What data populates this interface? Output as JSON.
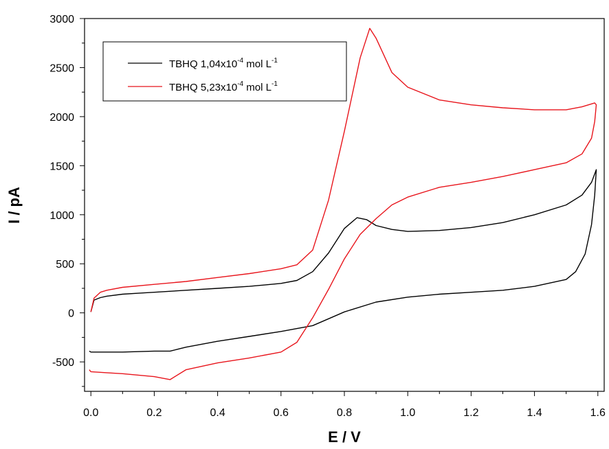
{
  "chart_data": {
    "type": "line",
    "title": "",
    "xlabel": "E / V",
    "ylabel": "I / pA",
    "xlim": [
      -0.02,
      1.62
    ],
    "ylim": [
      -800,
      3000
    ],
    "xticks": [
      "0.0",
      "0.2",
      "0.4",
      "0.6",
      "0.8",
      "1.0",
      "1.2",
      "1.4",
      "1.6"
    ],
    "yticks": [
      "-500",
      "0",
      "500",
      "1000",
      "1500",
      "2000",
      "2500",
      "3000"
    ],
    "grid": false,
    "legend_position": "top-left",
    "series": [
      {
        "name": "TBHQ 1,04x10-4 mol L-1",
        "legend_base": "TBHQ 1,04x10",
        "legend_exp": "-4",
        "legend_unit": " mol L",
        "legend_unit_exp": "-1",
        "color": "#000000",
        "points": [
          [
            0.0,
            10
          ],
          [
            0.01,
            130
          ],
          [
            0.03,
            155
          ],
          [
            0.05,
            170
          ],
          [
            0.1,
            190
          ],
          [
            0.15,
            200
          ],
          [
            0.2,
            210
          ],
          [
            0.3,
            230
          ],
          [
            0.4,
            250
          ],
          [
            0.5,
            270
          ],
          [
            0.6,
            300
          ],
          [
            0.65,
            330
          ],
          [
            0.7,
            420
          ],
          [
            0.75,
            610
          ],
          [
            0.8,
            860
          ],
          [
            0.84,
            970
          ],
          [
            0.87,
            950
          ],
          [
            0.9,
            890
          ],
          [
            0.95,
            850
          ],
          [
            1.0,
            830
          ],
          [
            1.1,
            840
          ],
          [
            1.2,
            870
          ],
          [
            1.3,
            920
          ],
          [
            1.4,
            1000
          ],
          [
            1.5,
            1100
          ],
          [
            1.55,
            1200
          ],
          [
            1.58,
            1330
          ],
          [
            1.595,
            1460
          ],
          [
            1.59,
            1200
          ],
          [
            1.58,
            900
          ],
          [
            1.56,
            600
          ],
          [
            1.53,
            420
          ],
          [
            1.5,
            340
          ],
          [
            1.4,
            270
          ],
          [
            1.3,
            230
          ],
          [
            1.2,
            210
          ],
          [
            1.1,
            190
          ],
          [
            1.0,
            160
          ],
          [
            0.9,
            110
          ],
          [
            0.8,
            10
          ],
          [
            0.75,
            -60
          ],
          [
            0.7,
            -130
          ],
          [
            0.6,
            -190
          ],
          [
            0.5,
            -240
          ],
          [
            0.4,
            -290
          ],
          [
            0.3,
            -350
          ],
          [
            0.25,
            -390
          ],
          [
            0.2,
            -390
          ],
          [
            0.1,
            -400
          ],
          [
            0.0,
            -400
          ],
          [
            -0.005,
            -390
          ]
        ]
      },
      {
        "name": "TBHQ 5,23x10-4 mol L-1",
        "legend_base": "TBHQ 5,23x10",
        "legend_exp": "-4",
        "legend_unit": " mol L",
        "legend_unit_exp": "-1",
        "color": "#e8141b",
        "points": [
          [
            0.0,
            10
          ],
          [
            0.01,
            150
          ],
          [
            0.03,
            210
          ],
          [
            0.05,
            230
          ],
          [
            0.1,
            260
          ],
          [
            0.2,
            290
          ],
          [
            0.3,
            320
          ],
          [
            0.4,
            360
          ],
          [
            0.5,
            400
          ],
          [
            0.6,
            450
          ],
          [
            0.65,
            490
          ],
          [
            0.7,
            640
          ],
          [
            0.75,
            1150
          ],
          [
            0.8,
            1850
          ],
          [
            0.85,
            2600
          ],
          [
            0.88,
            2900
          ],
          [
            0.9,
            2800
          ],
          [
            0.95,
            2450
          ],
          [
            1.0,
            2300
          ],
          [
            1.1,
            2170
          ],
          [
            1.2,
            2120
          ],
          [
            1.3,
            2090
          ],
          [
            1.4,
            2070
          ],
          [
            1.5,
            2070
          ],
          [
            1.55,
            2100
          ],
          [
            1.59,
            2140
          ],
          [
            1.595,
            2120
          ],
          [
            1.59,
            1950
          ],
          [
            1.58,
            1780
          ],
          [
            1.55,
            1620
          ],
          [
            1.5,
            1530
          ],
          [
            1.4,
            1460
          ],
          [
            1.3,
            1390
          ],
          [
            1.2,
            1330
          ],
          [
            1.1,
            1280
          ],
          [
            1.0,
            1180
          ],
          [
            0.95,
            1100
          ],
          [
            0.9,
            960
          ],
          [
            0.85,
            800
          ],
          [
            0.8,
            550
          ],
          [
            0.75,
            240
          ],
          [
            0.7,
            -50
          ],
          [
            0.65,
            -300
          ],
          [
            0.6,
            -400
          ],
          [
            0.5,
            -460
          ],
          [
            0.4,
            -510
          ],
          [
            0.3,
            -580
          ],
          [
            0.25,
            -680
          ],
          [
            0.2,
            -650
          ],
          [
            0.1,
            -620
          ],
          [
            0.05,
            -610
          ],
          [
            0.0,
            -600
          ],
          [
            -0.005,
            -580
          ]
        ]
      }
    ]
  }
}
